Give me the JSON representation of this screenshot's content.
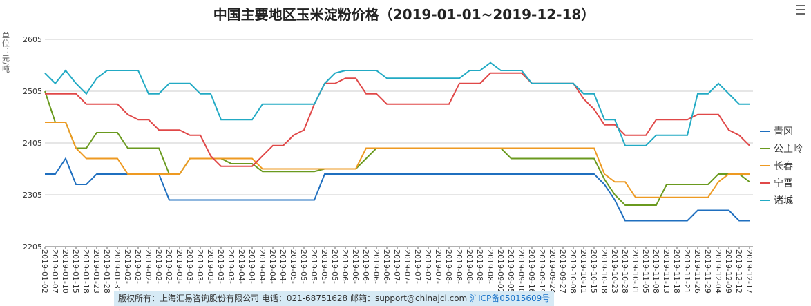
{
  "chart_data": {
    "type": "line",
    "title": "中国主要地区玉米淀粉价格（2019-01-01~2019-12-18）",
    "y_label": "单位：元/吨",
    "categories": [
      "2019-01-02",
      "2019-01-07",
      "2019-01-10",
      "2019-01-15",
      "2019-01-18",
      "2019-01-23",
      "2019-01-28",
      "2019-01-31",
      "2019-02-",
      "2019-02-",
      "2019-02-",
      "2019-02-",
      "2019-02-",
      "2019-03-",
      "2019-03-",
      "2019-03-",
      "2019-03-",
      "2019-03-",
      "2019-03-",
      "2019-04-",
      "2019-04-",
      "2019-04-",
      "2019-04-",
      "2019-04-",
      "2019-05-",
      "2019-05-",
      "2019-05-",
      "2019-05-",
      "2019-05-",
      "2019-06-",
      "2019-06-",
      "2019-06-",
      "2019-06-",
      "2019-06-",
      "2019-07-",
      "2019-07-",
      "2019-07-",
      "2019-07-",
      "2019-07-",
      "2019-08-",
      "2019-08-",
      "2019-08-",
      "2019-08-",
      "2019-08-",
      "2019-09-02",
      "2019-09-05",
      "2019-09-10",
      "2019-09-16",
      "2019-09-19",
      "2019-09-24",
      "2019-09-27",
      "2019-10-08",
      "2019-10-11",
      "2019-10-15",
      "2019-10-18",
      "2019-10-23",
      "2019-10-28",
      "2019-10-31",
      "2019-11-05",
      "2019-11-08",
      "2019-11-13",
      "2019-11-18",
      "2019-11-21",
      "2019-11-26",
      "2019-11-29",
      "2019-12-04",
      "2019-12-09",
      "2019-12-12",
      "2019-12-17"
    ],
    "series": [
      {
        "name": "青冈",
        "color": "#1f6fbf",
        "values": [
          2345,
          2345,
          2375,
          2325,
          2325,
          2345,
          2345,
          2345,
          2345,
          2345,
          2345,
          2345,
          2295,
          2295,
          2295,
          2295,
          2295,
          2295,
          2295,
          2295,
          2295,
          2295,
          2295,
          2295,
          2295,
          2295,
          2295,
          2345,
          2345,
          2345,
          2345,
          2345,
          2345,
          2345,
          2345,
          2345,
          2345,
          2345,
          2345,
          2345,
          2345,
          2345,
          2345,
          2345,
          2345,
          2345,
          2345,
          2345,
          2345,
          2345,
          2345,
          2345,
          2345,
          2345,
          2325,
          2295,
          2255,
          2255,
          2255,
          2255,
          2255,
          2255,
          2255,
          2275,
          2275,
          2275,
          2275,
          2255,
          2255
        ]
      },
      {
        "name": "公主岭",
        "color": "#6a9a1f",
        "values": [
          2505,
          2445,
          2445,
          2395,
          2395,
          2425,
          2425,
          2425,
          2395,
          2395,
          2395,
          2395,
          2345,
          2345,
          2375,
          2375,
          2375,
          2375,
          2365,
          2365,
          2365,
          2350,
          2350,
          2350,
          2350,
          2350,
          2350,
          2355,
          2355,
          2355,
          2355,
          2375,
          2395,
          2395,
          2395,
          2395,
          2395,
          2395,
          2395,
          2395,
          2395,
          2395,
          2395,
          2395,
          2395,
          2375,
          2375,
          2375,
          2375,
          2375,
          2375,
          2375,
          2375,
          2375,
          2335,
          2305,
          2285,
          2285,
          2285,
          2285,
          2325,
          2325,
          2325,
          2325,
          2325,
          2345,
          2345,
          2345,
          2330
        ]
      },
      {
        "name": "长春",
        "color": "#ee9a22",
        "values": [
          2445,
          2445,
          2445,
          2395,
          2375,
          2375,
          2375,
          2375,
          2345,
          2345,
          2345,
          2345,
          2345,
          2345,
          2375,
          2375,
          2375,
          2375,
          2375,
          2375,
          2375,
          2355,
          2355,
          2355,
          2355,
          2355,
          2355,
          2355,
          2355,
          2355,
          2355,
          2395,
          2395,
          2395,
          2395,
          2395,
          2395,
          2395,
          2395,
          2395,
          2395,
          2395,
          2395,
          2395,
          2395,
          2395,
          2395,
          2395,
          2395,
          2395,
          2395,
          2395,
          2395,
          2395,
          2345,
          2330,
          2330,
          2300,
          2300,
          2300,
          2300,
          2300,
          2300,
          2300,
          2300,
          2330,
          2345,
          2345,
          2345
        ]
      },
      {
        "name": "宁晋",
        "color": "#e04848",
        "values": [
          2500,
          2500,
          2500,
          2500,
          2480,
          2480,
          2480,
          2480,
          2460,
          2450,
          2450,
          2430,
          2430,
          2430,
          2420,
          2420,
          2380,
          2360,
          2360,
          2360,
          2360,
          2380,
          2400,
          2400,
          2420,
          2430,
          2480,
          2520,
          2520,
          2530,
          2530,
          2500,
          2500,
          2480,
          2480,
          2480,
          2480,
          2480,
          2480,
          2480,
          2520,
          2520,
          2520,
          2540,
          2540,
          2540,
          2540,
          2520,
          2520,
          2520,
          2520,
          2520,
          2490,
          2470,
          2440,
          2440,
          2420,
          2420,
          2420,
          2450,
          2450,
          2450,
          2450,
          2460,
          2460,
          2460,
          2430,
          2420,
          2400
        ]
      },
      {
        "name": "诸城",
        "color": "#22aac4",
        "values": [
          2540,
          2520,
          2545,
          2520,
          2500,
          2530,
          2545,
          2545,
          2545,
          2545,
          2500,
          2500,
          2520,
          2520,
          2520,
          2500,
          2500,
          2450,
          2450,
          2450,
          2450,
          2480,
          2480,
          2480,
          2480,
          2480,
          2480,
          2520,
          2540,
          2545,
          2545,
          2545,
          2545,
          2530,
          2530,
          2530,
          2530,
          2530,
          2530,
          2530,
          2530,
          2545,
          2545,
          2560,
          2545,
          2545,
          2545,
          2520,
          2520,
          2520,
          2520,
          2520,
          2500,
          2500,
          2450,
          2450,
          2400,
          2400,
          2400,
          2420,
          2420,
          2420,
          2420,
          2500,
          2500,
          2520,
          2500,
          2480,
          2480
        ]
      }
    ],
    "ylim": [
      2205,
      2605
    ],
    "yticks": [
      2205,
      2305,
      2405,
      2505,
      2605
    ],
    "grid": true,
    "legend": "right"
  },
  "footer": {
    "text": "版权所有：上海汇易咨询股份有限公司  电话：021-68751628  邮箱：support@chinajci.com",
    "icp": "沪ICP备05015609号"
  }
}
